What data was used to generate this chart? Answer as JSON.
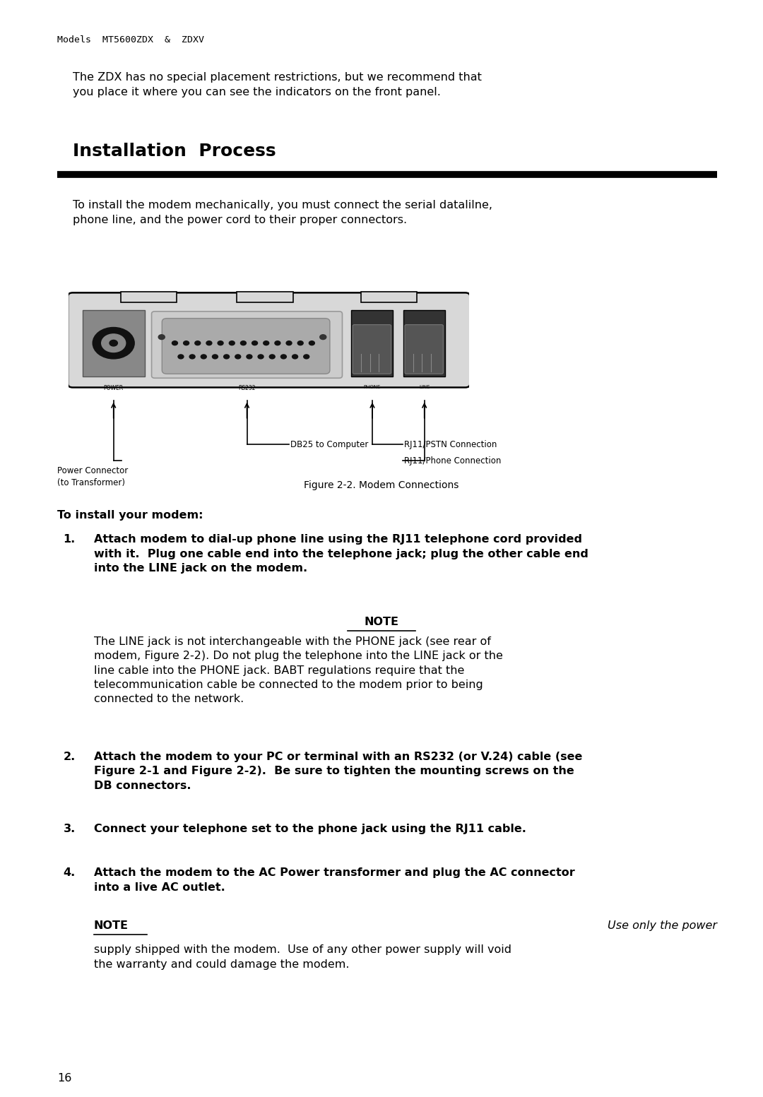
{
  "bg_color": "#ffffff",
  "page_width": 10.8,
  "page_height": 15.53,
  "header_text": "Models  MT5600ZDX  &  ZDXV",
  "intro_text": "The ZDX has no special placement restrictions, but we recommend that\nyou place it where you can see the indicators on the front panel.",
  "section_title": "Installation  Process",
  "section_body": "To install the modem mechanically, you must connect the serial datalilne,\nphone line, and the power cord to their proper connectors.",
  "figure_caption": "Figure 2-2. Modem Connections",
  "install_intro": "To install your modem:",
  "step1": "Attach modem to dial-up phone line using the RJ11 telephone cord provided\nwith it.  Plug one cable end into the telephone jack; plug the other cable end\ninto the LINE jack on the modem.",
  "note1_label": "NOTE",
  "note1_body": "The LINE jack is not interchangeable with the PHONE jack (see rear of\nmodem, Figure 2-2). Do not plug the telephone into the LINE jack or the\nline cable into the PHONE jack. BABT regulations require that the\ntelecommunication cable be connected to the modem prior to being\nconnected to the network.",
  "step2": "Attach the modem to your PC or terminal with an RS232 (or V.24) cable (see\nFigure 2-1 and Figure 2-2).  Be sure to tighten the mounting screws on the\nDB connectors.",
  "step3": "Connect your telephone set to the phone jack using the RJ11 cable.",
  "step4": "Attach the modem to the AC Power transformer and plug the AC connector\ninto a live AC outlet.",
  "note2_label": "NOTE",
  "note2_right": "Use only the power",
  "note2_body": "supply shipped with the modem.  Use of any other power supply will void\nthe warranty and could damage the modem.",
  "page_number": "16",
  "font_color": "#000000",
  "header_fontsize": 9.5,
  "body_fontsize": 11.5,
  "title_fontsize": 18,
  "small_fontsize": 9.0
}
